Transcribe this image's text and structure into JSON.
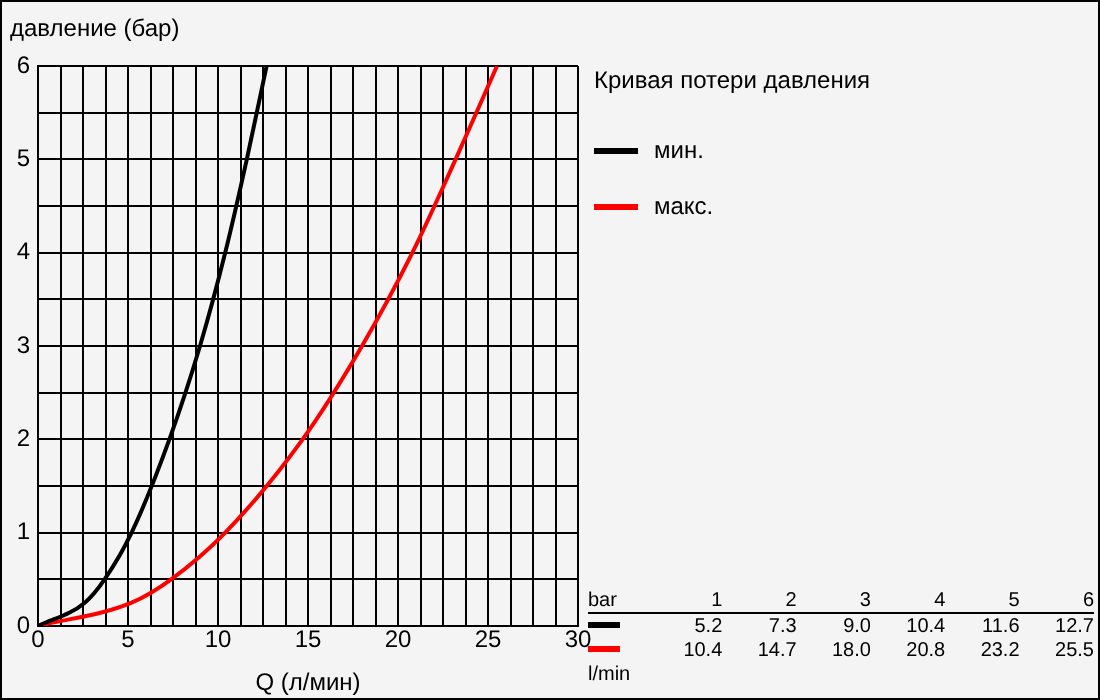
{
  "chart_data": {
    "type": "line",
    "ylabel": "давление (бар)",
    "xlabel": "Q (л/мин)",
    "legend_title": "Кривая потери давления",
    "legend": "top right",
    "grid": true,
    "marker": "none",
    "line_style": "solid",
    "xlim": [
      0,
      30
    ],
    "ylim": [
      0,
      6
    ],
    "xticks": [
      0,
      {
        "value": 1.25,
        "label": null
      },
      {
        "value": 2.5,
        "label": null
      },
      {
        "value": 3.75,
        "label": null
      },
      5,
      {
        "value": 6.25,
        "label": null
      },
      {
        "value": 7.5,
        "label": null
      },
      {
        "value": 8.75,
        "label": null
      },
      10,
      {
        "value": 11.25,
        "label": null
      },
      {
        "value": 12.5,
        "label": null
      },
      {
        "value": 13.75,
        "label": null
      },
      15,
      {
        "value": 16.25,
        "label": null
      },
      {
        "value": 17.5,
        "label": null
      },
      {
        "value": 18.75,
        "label": null
      },
      20,
      {
        "value": 21.25,
        "label": null
      },
      {
        "value": 22.5,
        "label": null
      },
      {
        "value": 23.75,
        "label": null
      },
      25,
      {
        "value": 26.25,
        "label": null
      },
      {
        "value": 27.5,
        "label": null
      },
      {
        "value": 28.75,
        "label": null
      },
      30
    ],
    "yticks": [
      0,
      {
        "value": 0.5,
        "label": null
      },
      1,
      {
        "value": 1.5,
        "label": null
      },
      2,
      {
        "value": 2.5,
        "label": null
      },
      3,
      {
        "value": 3.5,
        "label": null
      },
      4,
      {
        "value": 4.5,
        "label": null
      },
      5,
      {
        "value": 5.5,
        "label": null
      },
      6
    ],
    "series": [
      {
        "name": "мин.",
        "color": "#000000",
        "x": [
          0,
          2.6,
          3.7,
          5.2,
          7.3,
          9.0,
          10.4,
          11.6,
          12.7
        ],
        "values": [
          0,
          0.25,
          0.5,
          1,
          2,
          3,
          4,
          5,
          6
        ]
      },
      {
        "name": "макс.",
        "color": "#ff0000",
        "x": [
          0,
          5.2,
          7.4,
          10.4,
          14.7,
          18.0,
          20.8,
          23.2,
          25.5
        ],
        "values": [
          0,
          0.25,
          0.5,
          1,
          2,
          3,
          4,
          5,
          6
        ]
      }
    ],
    "annotations": [
      "bar",
      "1",
      "2",
      "3",
      "4",
      "5",
      "6",
      "5.2",
      "7.3",
      "9.0",
      "10.4",
      "11.6",
      "12.7",
      "10.4",
      "14.7",
      "18.0",
      "20.8",
      "23.2",
      "25.5",
      "l/min"
    ]
  }
}
